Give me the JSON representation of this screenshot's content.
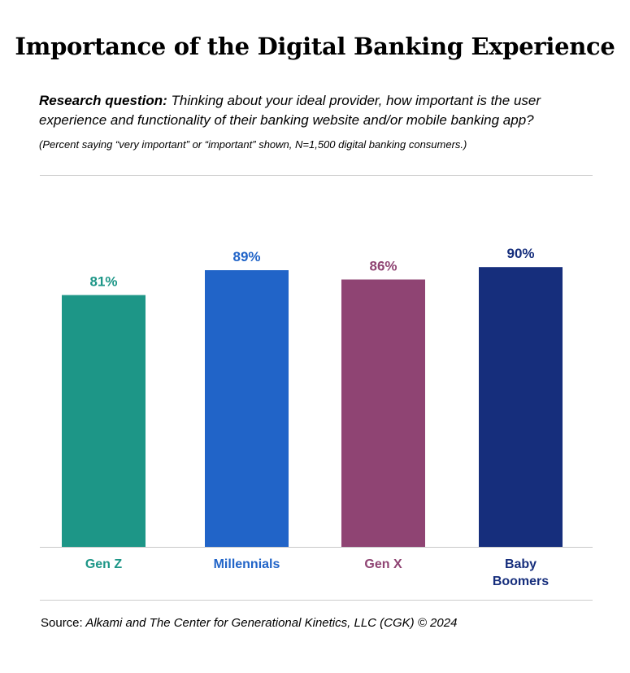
{
  "title": "Importance of the Digital Banking Experience",
  "question": {
    "label": "Research question:",
    "text": " Thinking about your ideal provider, how important is the user experience and functionality of their banking website and/or mobile banking app?"
  },
  "note": "(Percent saying “very important” or “important” shown, N=1,500 digital banking consumers.)",
  "source": {
    "label": "Source:",
    "text": " Alkami and The Center for Generational Kinetics, LLC (CGK) © 2024"
  },
  "chart_data": {
    "type": "bar",
    "categories": [
      "Gen Z",
      "Millennials",
      "Gen X",
      "Baby Boomers"
    ],
    "category_lines": [
      [
        "Gen Z"
      ],
      [
        "Millennials"
      ],
      [
        "Gen X"
      ],
      [
        "Baby",
        "Boomers"
      ]
    ],
    "values": [
      81,
      89,
      86,
      90
    ],
    "value_labels": [
      "81%",
      "89%",
      "86%",
      "90%"
    ],
    "colors": [
      "#1d9687",
      "#2164c8",
      "#8f4473",
      "#162e7c"
    ],
    "ylim": [
      0,
      100
    ],
    "grid": false,
    "legend": "none",
    "title": "",
    "xlabel": "",
    "ylabel": ""
  }
}
